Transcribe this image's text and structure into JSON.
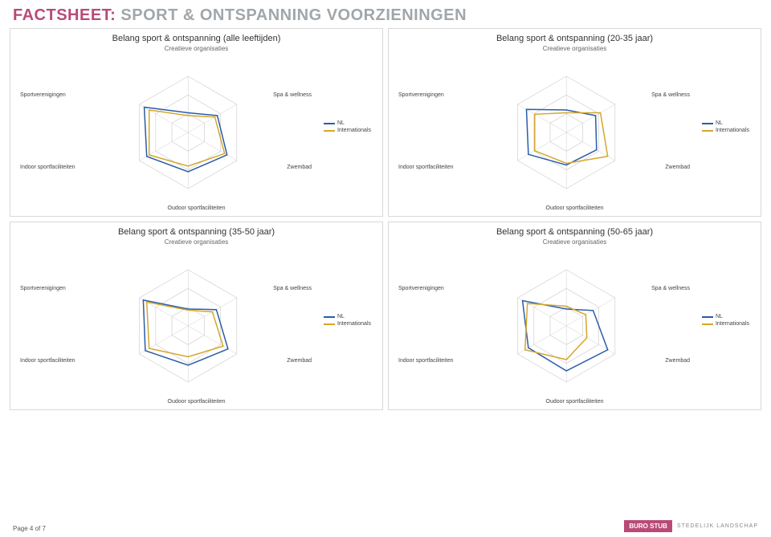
{
  "header": {
    "prefix": "FACTSHEET:",
    "title": "SPORT & ONTSPANNING VOORZIENINGEN"
  },
  "axis_labels": [
    "Creatieve organisaties",
    "Spa & wellness",
    "Zwembad",
    "Oudoor sportfaciliteiten",
    "Indoor sportfaciliteiten",
    "Sportverenigingen"
  ],
  "legend": {
    "series_a": "NL",
    "series_b": "Internationals"
  },
  "series_colors": {
    "nl": "#2a5ca8",
    "internationals": "#d4a72c"
  },
  "grid_color": "#d0d0d0",
  "background_color": "#ffffff",
  "border_color": "#d8d8d8",
  "rings": 3,
  "charts": [
    {
      "title": "Belang sport & ontspanning (alle leeftijden)",
      "subtitle": "Creatieve organisaties",
      "nl": [
        0.35,
        0.6,
        0.8,
        0.7,
        0.85,
        0.9
      ],
      "internationals": [
        0.3,
        0.55,
        0.75,
        0.6,
        0.8,
        0.8
      ]
    },
    {
      "title": "Belang sport & ontspanning (20-35 jaar)",
      "subtitle": "Creatieve organisaties",
      "nl": [
        0.4,
        0.6,
        0.62,
        0.58,
        0.78,
        0.82
      ],
      "internationals": [
        0.35,
        0.7,
        0.85,
        0.55,
        0.65,
        0.65
      ]
    },
    {
      "title": "Belang sport & ontspanning (35-50 jaar)",
      "subtitle": "Creatieve organisaties",
      "nl": [
        0.3,
        0.58,
        0.82,
        0.7,
        0.88,
        0.92
      ],
      "internationals": [
        0.28,
        0.5,
        0.72,
        0.55,
        0.8,
        0.85
      ]
    },
    {
      "title": "Belang sport & ontspanning (50-65 jaar)",
      "subtitle": "Creatieve organisaties",
      "nl": [
        0.3,
        0.55,
        0.85,
        0.8,
        0.78,
        0.9
      ],
      "internationals": [
        0.35,
        0.4,
        0.42,
        0.6,
        0.85,
        0.8
      ]
    }
  ],
  "footer": {
    "page": "Page 4 of 7",
    "brand_prefix": "BURO",
    "brand_main": "STUB",
    "brand_sub": "STEDELIJK LANDSCHAP"
  },
  "chart_style": {
    "type": "radar",
    "radius": 70,
    "line_width": 1.5,
    "grid_width": 0.7,
    "title_fontsize": 11,
    "subtitle_fontsize": 8,
    "axis_label_fontsize": 7,
    "legend_fontsize": 7
  }
}
